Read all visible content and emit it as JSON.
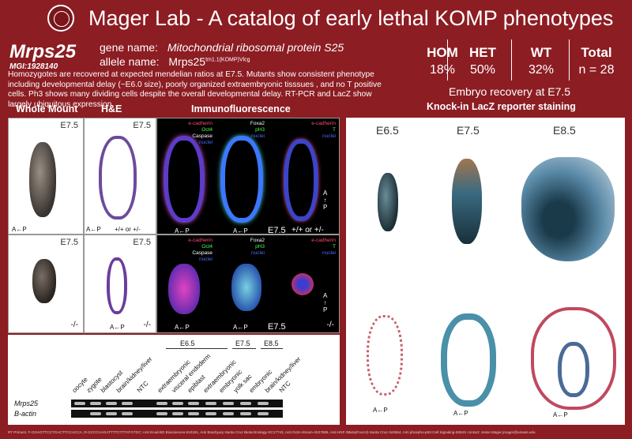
{
  "header": {
    "title": "Mager Lab - A catalog of early lethal KOMP phenotypes",
    "logo_icon": "university-seal-icon"
  },
  "gene": {
    "symbol": "Mrps25",
    "mgi": "MGI:1928140",
    "name_label": "gene name:",
    "name_value": "Mitochondrial ribosomal protein S25",
    "allele_label": "allele name:",
    "allele_base": "Mrps25",
    "allele_sup": "tm1.1(KOMP)Vlcg"
  },
  "summary": "Homozygotes are recovered at expected mendelian ratios at E7.5.  Mutants show consistent phenotype including developmental delay (~E6.0 size), poorly organized extraembryonic tisssues , and no T positive cells.  Ph3 shows many dividing cells despite the overall developmental delay. RT-PCR and LacZ  show largely ubiquitous expression.",
  "stats": [
    {
      "header": "HOM",
      "value": "18%"
    },
    {
      "header": "HET",
      "value": "50%"
    },
    {
      "header": "WT",
      "value": "32%"
    },
    {
      "header": "Total",
      "value": "n = 28"
    }
  ],
  "recovery_caption": "Embryo recovery at E7.5",
  "sections": {
    "whole_mount": "Whole Mount",
    "he": "H&E",
    "if": "Immunofluorescence",
    "lacz": "Knock-in LacZ reporter staining"
  },
  "labels": {
    "e75": "E7.5",
    "e65": "E6.5",
    "e85": "E8.5",
    "axis": "A←P",
    "geno_wt": "+/+ or +/-",
    "geno_hom": "-/-",
    "vertical_axis": "A\n↑\nP"
  },
  "if_stains": {
    "p1": [
      "e-cadherin",
      "Oct4",
      "Caspase",
      "nuclei"
    ],
    "p2": [
      "Foxa2",
      "pH3",
      "nuclei"
    ],
    "p3": [
      "e-cadherin",
      "T",
      "nuclei"
    ]
  },
  "gel": {
    "lanes": [
      "oocyte",
      "zygote",
      "blastocyst",
      "brain/kidney/liver",
      "NTC",
      "extraembryonic",
      "visceral endoderm",
      "epiblast",
      "extraembryonic",
      "embryonic",
      "yolk sac",
      "embryonic",
      "brain/kidney/liver",
      "NTC"
    ],
    "stage_headers": [
      "E6.5",
      "E7.5",
      "E8.5"
    ],
    "rows": [
      "Mrps25",
      "B-actin"
    ]
  },
  "footer": "RT Primers: F-GGAGTTCCTGACTTCCACCA, R-GCCCAAGATTTTCTTTATGTGC; Anti Ecad-BD Biosciences-610181, Anti Brachyury-Santa Cruz Biotechnology-SC17743, Anti Oct4-Abcam-Ab27985, Anti HNF-3Beta(FoxA2)-Santa Cruz-3c6554, Anti phospho-p53-Cell Signaling-9284S contact: Jesse Mager jmager@umass.edu"
}
